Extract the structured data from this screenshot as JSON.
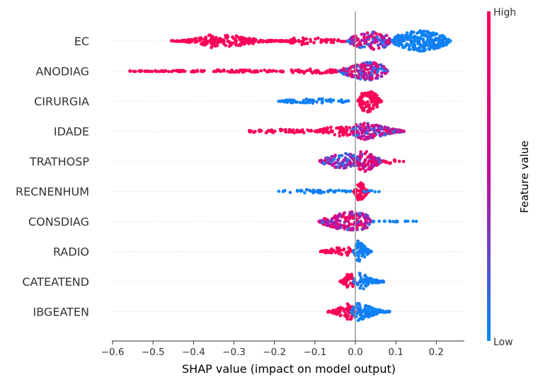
{
  "chart_data": {
    "type": "scatter",
    "subtype": "shap-beeswarm",
    "xlabel": "SHAP value (impact on model output)",
    "xticks": [
      -0.6,
      -0.5,
      -0.4,
      -0.3,
      -0.2,
      -0.1,
      0.0,
      0.1,
      0.2
    ],
    "xtick_labels": [
      "−0.6",
      "−0.5",
      "−0.4",
      "−0.3",
      "−0.2",
      "−0.1",
      "0.0",
      "0.1",
      "0.2"
    ],
    "xlim": [
      -0.62,
      0.27
    ],
    "zero_line": true,
    "row_gridlines": "dotted",
    "colorbar": {
      "title": "Feature value",
      "high_label": "High",
      "low_label": "Low",
      "high_color": "#ff0052",
      "mid_color": "#c20c9f",
      "low_color": "#008bfb"
    },
    "features": [
      {
        "name": "EC",
        "segments": [
          {
            "min": -0.455,
            "max": -0.33,
            "peak": -0.33,
            "density": 0.55,
            "width": 0.65,
            "color": "high"
          },
          {
            "min": -0.33,
            "max": -0.17,
            "peak": -0.33,
            "density": 0.6,
            "width": 0.55,
            "color": "high"
          },
          {
            "min": -0.17,
            "max": -0.02,
            "peak": -0.12,
            "density": 0.35,
            "width": 0.3,
            "color": "high"
          },
          {
            "min": -0.02,
            "max": 0.09,
            "peak": 0.04,
            "density": 0.7,
            "width": 0.75,
            "color": "mix"
          },
          {
            "min": 0.09,
            "max": 0.235,
            "peak": 0.16,
            "density": 0.9,
            "width": 0.85,
            "color": "low"
          }
        ]
      },
      {
        "name": "ANODIAG",
        "segments": [
          {
            "min": -0.56,
            "max": -0.2,
            "peak": -0.3,
            "density": 0.5,
            "width": 0.1,
            "color": "high"
          },
          {
            "min": -0.2,
            "max": -0.04,
            "peak": -0.1,
            "density": 0.4,
            "width": 0.2,
            "color": "high"
          },
          {
            "min": -0.04,
            "max": 0.08,
            "peak": 0.03,
            "density": 0.8,
            "width": 0.75,
            "color": "mix"
          }
        ]
      },
      {
        "name": "CIRURGIA",
        "segments": [
          {
            "min": -0.19,
            "max": -0.01,
            "peak": -0.1,
            "density": 0.45,
            "width": 0.2,
            "color": "low"
          },
          {
            "min": 0.005,
            "max": 0.065,
            "peak": 0.03,
            "density": 0.9,
            "width": 0.9,
            "color": "high"
          }
        ]
      },
      {
        "name": "IDADE",
        "segments": [
          {
            "min": -0.27,
            "max": -0.1,
            "peak": -0.18,
            "density": 0.35,
            "width": 0.2,
            "color": "high"
          },
          {
            "min": -0.1,
            "max": 0.0,
            "peak": -0.04,
            "density": 0.5,
            "width": 0.4,
            "color": "high"
          },
          {
            "min": -0.01,
            "max": 0.12,
            "peak": 0.02,
            "density": 0.8,
            "width": 0.7,
            "color": "mix"
          }
        ]
      },
      {
        "name": "TRATHOSP",
        "segments": [
          {
            "min": -0.09,
            "max": 0.01,
            "peak": -0.025,
            "density": 0.75,
            "width": 0.65,
            "color": "mixlow"
          },
          {
            "min": 0.0,
            "max": 0.07,
            "peak": 0.02,
            "density": 0.85,
            "width": 0.85,
            "color": "mixhigh"
          },
          {
            "min": 0.07,
            "max": 0.12,
            "peak": 0.08,
            "density": 0.3,
            "width": 0.2,
            "color": "high"
          }
        ]
      },
      {
        "name": "RECNENHUM",
        "segments": [
          {
            "min": -0.19,
            "max": -0.01,
            "peak": -0.1,
            "density": 0.35,
            "width": 0.15,
            "color": "low"
          },
          {
            "min": -0.005,
            "max": 0.035,
            "peak": 0.01,
            "density": 0.9,
            "width": 0.75,
            "color": "high"
          },
          {
            "min": 0.02,
            "max": 0.065,
            "peak": 0.03,
            "density": 0.25,
            "width": 0.15,
            "color": "low"
          }
        ]
      },
      {
        "name": "CONSDIAG",
        "segments": [
          {
            "min": -0.09,
            "max": 0.04,
            "peak": -0.01,
            "density": 0.8,
            "width": 0.8,
            "color": "mixhigh"
          },
          {
            "min": 0.04,
            "max": 0.16,
            "peak": 0.1,
            "density": 0.25,
            "width": 0.05,
            "color": "low"
          }
        ]
      },
      {
        "name": "RADIO",
        "segments": [
          {
            "min": -0.09,
            "max": -0.005,
            "peak": -0.03,
            "density": 0.55,
            "width": 0.35,
            "color": "high"
          },
          {
            "min": -0.005,
            "max": 0.04,
            "peak": 0.005,
            "density": 0.8,
            "width": 0.9,
            "color": "low"
          }
        ]
      },
      {
        "name": "CATEATEND",
        "segments": [
          {
            "min": -0.04,
            "max": 0.0,
            "peak": -0.01,
            "density": 0.7,
            "width": 0.75,
            "color": "high"
          },
          {
            "min": -0.005,
            "max": 0.07,
            "peak": 0.005,
            "density": 0.7,
            "width": 0.75,
            "color": "low"
          }
        ]
      },
      {
        "name": "IBGEATEN",
        "segments": [
          {
            "min": -0.07,
            "max": 0.0,
            "peak": -0.01,
            "density": 0.6,
            "width": 0.7,
            "color": "high"
          },
          {
            "min": -0.01,
            "max": 0.085,
            "peak": 0.0,
            "density": 0.7,
            "width": 0.75,
            "color": "low"
          }
        ]
      }
    ]
  }
}
